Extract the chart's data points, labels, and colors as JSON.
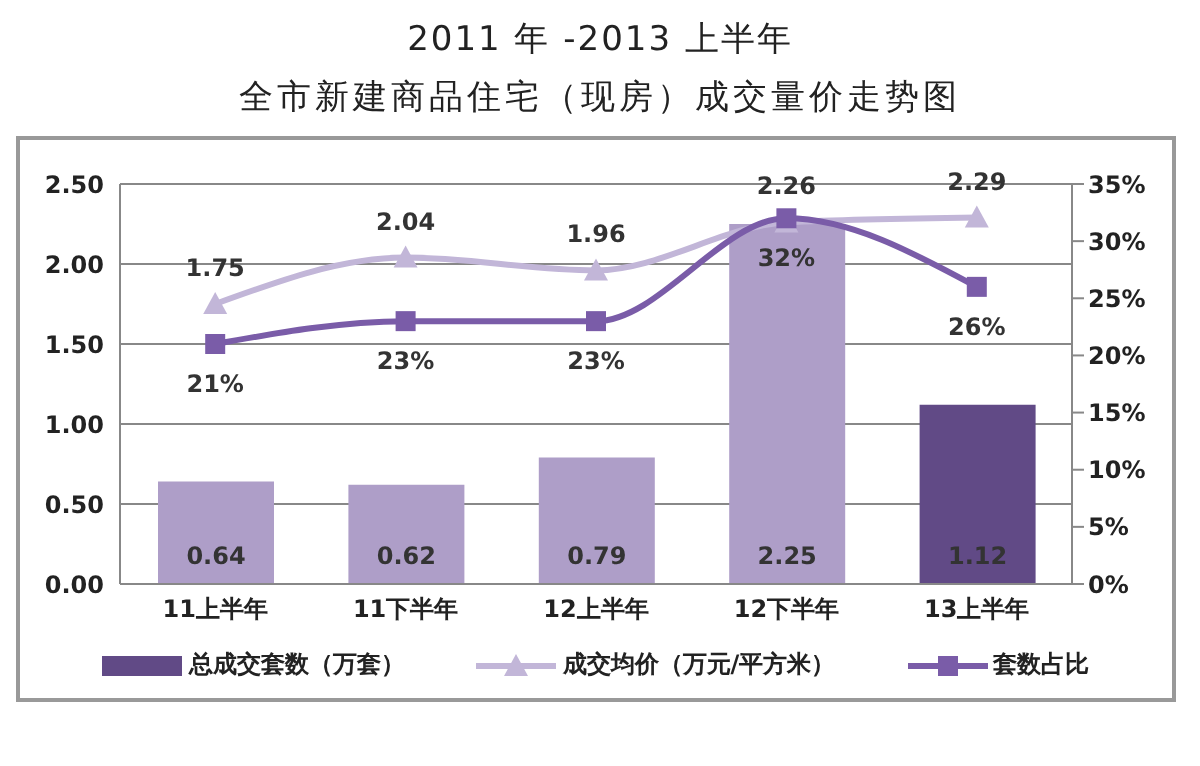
{
  "chart_data": {
    "type": "bar",
    "title": "2011 年 -2013 上半年",
    "subtitle": "全市新建商品住宅（现房）成交量价走势图",
    "categories": [
      "11上半年",
      "11下半年",
      "12上半年",
      "12下半年",
      "13上半年"
    ],
    "series": [
      {
        "name": "总成交套数（万套）",
        "color": "#614a86",
        "colors": [
          "#ae9ec8",
          "#ae9ec8",
          "#ae9ec8",
          "#ae9ec8",
          "#614a86"
        ],
        "values": [
          0.64,
          0.62,
          0.79,
          2.25,
          1.12
        ],
        "value_labels": [
          "0.64",
          "0.62",
          "0.79",
          "2.25",
          "1.12"
        ]
      },
      {
        "name": "成交均价（万元/平方米）",
        "type": "line",
        "color": "#c2b6d8",
        "marker": "triangle",
        "values": [
          1.75,
          2.04,
          1.96,
          2.26,
          2.29
        ],
        "value_labels": [
          "1.75",
          "2.04",
          "1.96",
          "2.26",
          "2.29"
        ]
      },
      {
        "name": "套数占比",
        "type": "line",
        "axis": "y2",
        "color": "#7a5ca8",
        "marker": "square",
        "values": [
          21,
          23,
          23,
          32,
          26
        ],
        "value_labels": [
          "21%",
          "23%",
          "23%",
          "32%",
          "26%"
        ]
      }
    ],
    "ylim": [
      0,
      2.5
    ],
    "yticks": [
      {
        "value": 0,
        "label": "0.00"
      },
      {
        "value": 0.5,
        "label": "0.50"
      },
      {
        "value": 1,
        "label": "1.00"
      },
      {
        "value": 1.5,
        "label": "1.50"
      },
      {
        "value": 2,
        "label": "2.00"
      },
      {
        "value": 2.5,
        "label": "2.50"
      }
    ],
    "y2lim": [
      0,
      35
    ],
    "y2ticks": [
      {
        "value": 0,
        "label": "0%"
      },
      {
        "value": 5,
        "label": "5%"
      },
      {
        "value": 10,
        "label": "10%"
      },
      {
        "value": 15,
        "label": "15%"
      },
      {
        "value": 20,
        "label": "20%"
      },
      {
        "value": 25,
        "label": "25%"
      },
      {
        "value": 30,
        "label": "30%"
      },
      {
        "value": 35,
        "label": "35%"
      }
    ],
    "grid": "y",
    "legend": "bottom"
  }
}
